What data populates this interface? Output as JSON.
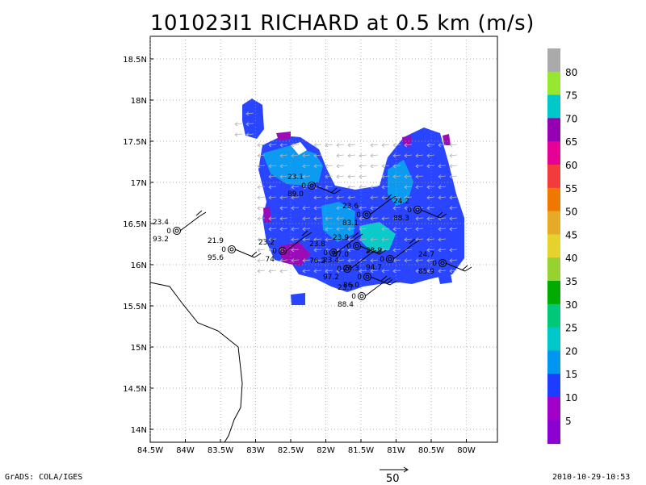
{
  "title": "101023I1 RICHARD at 0.5 km (m/s)",
  "footer": {
    "left": "GrADS: COLA/IGES",
    "right": "2010-10-29-10:53",
    "scale_label": "50"
  },
  "axes": {
    "lat_labels": [
      "18.5N",
      "18N",
      "17.5N",
      "17N",
      "16.5N",
      "16N",
      "15.5N",
      "15N",
      "14.5N",
      "14N"
    ],
    "lon_labels": [
      "84.5W",
      "84W",
      "83.5W",
      "83W",
      "82.5W",
      "82W",
      "81.5W",
      "81W",
      "80.5W",
      "80W"
    ],
    "grid": true
  },
  "colorbar": {
    "labels": [
      "80",
      "75",
      "70",
      "65",
      "60",
      "55",
      "50",
      "45",
      "40",
      "35",
      "30",
      "25",
      "20",
      "15",
      "10",
      "5"
    ],
    "colors": [
      "#aaaaaa",
      "#96e632",
      "#00c8c8",
      "#9600b4",
      "#e60096",
      "#f03c3c",
      "#f07800",
      "#e6aa28",
      "#e6d22d",
      "#96d232",
      "#00aa00",
      "#00c878",
      "#00c8c8",
      "#0096f0",
      "#1e3cff",
      "#a000c8",
      "#8c00d2"
    ]
  },
  "observations": [
    {
      "speed": "23.4",
      "dir": "0",
      "pressure": "93.2"
    },
    {
      "speed": "21.9",
      "dir": "0",
      "pressure": "95.6"
    },
    {
      "speed": "23.2",
      "dir": "0",
      "pressure": "74"
    },
    {
      "speed": "23.1",
      "dir": "0",
      "pressure": "89.0"
    },
    {
      "speed": "23.6",
      "dir": "0",
      "pressure": "83.1"
    },
    {
      "speed": "24.2",
      "dir": "0",
      "pressure": "88.3"
    },
    {
      "speed": "23.8",
      "dir": "0",
      "pressure": "76.2"
    },
    {
      "speed": "23.9",
      "dir": "0",
      "pressure": "87.0"
    },
    {
      "speed": "23.9",
      "dir": "0",
      "pressure": "94.7"
    },
    {
      "speed": "24.7",
      "dir": "0",
      "pressure": "85.9"
    },
    {
      "speed": "23.4",
      "dir": "0",
      "pressure": "97.2"
    },
    {
      "speed": "24.3",
      "dir": "0",
      "pressure": "86.0"
    },
    {
      "speed": "23.7",
      "dir": "0",
      "pressure": "88.4"
    }
  ]
}
